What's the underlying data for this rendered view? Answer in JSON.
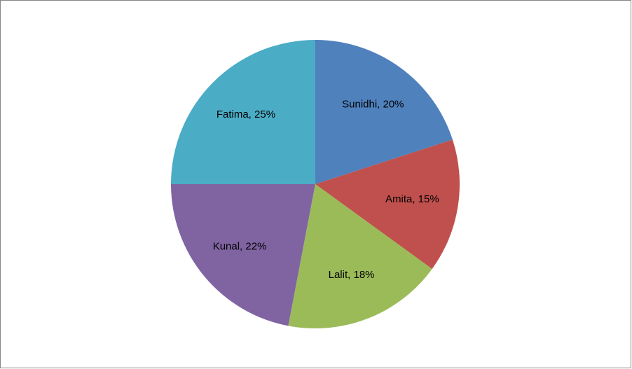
{
  "chart_data": {
    "type": "pie",
    "values": [
      20,
      15,
      18,
      22,
      25
    ],
    "value_labels": [
      "Sunidhi, 20%",
      "Amita, 15%",
      "Lalit, 18%",
      "Kunal, 22%",
      "Fatima, 25%"
    ],
    "colors": [
      "#4f81bd",
      "#c0504d",
      "#9bbb59",
      "#8064a2",
      "#4bacc6"
    ]
  }
}
